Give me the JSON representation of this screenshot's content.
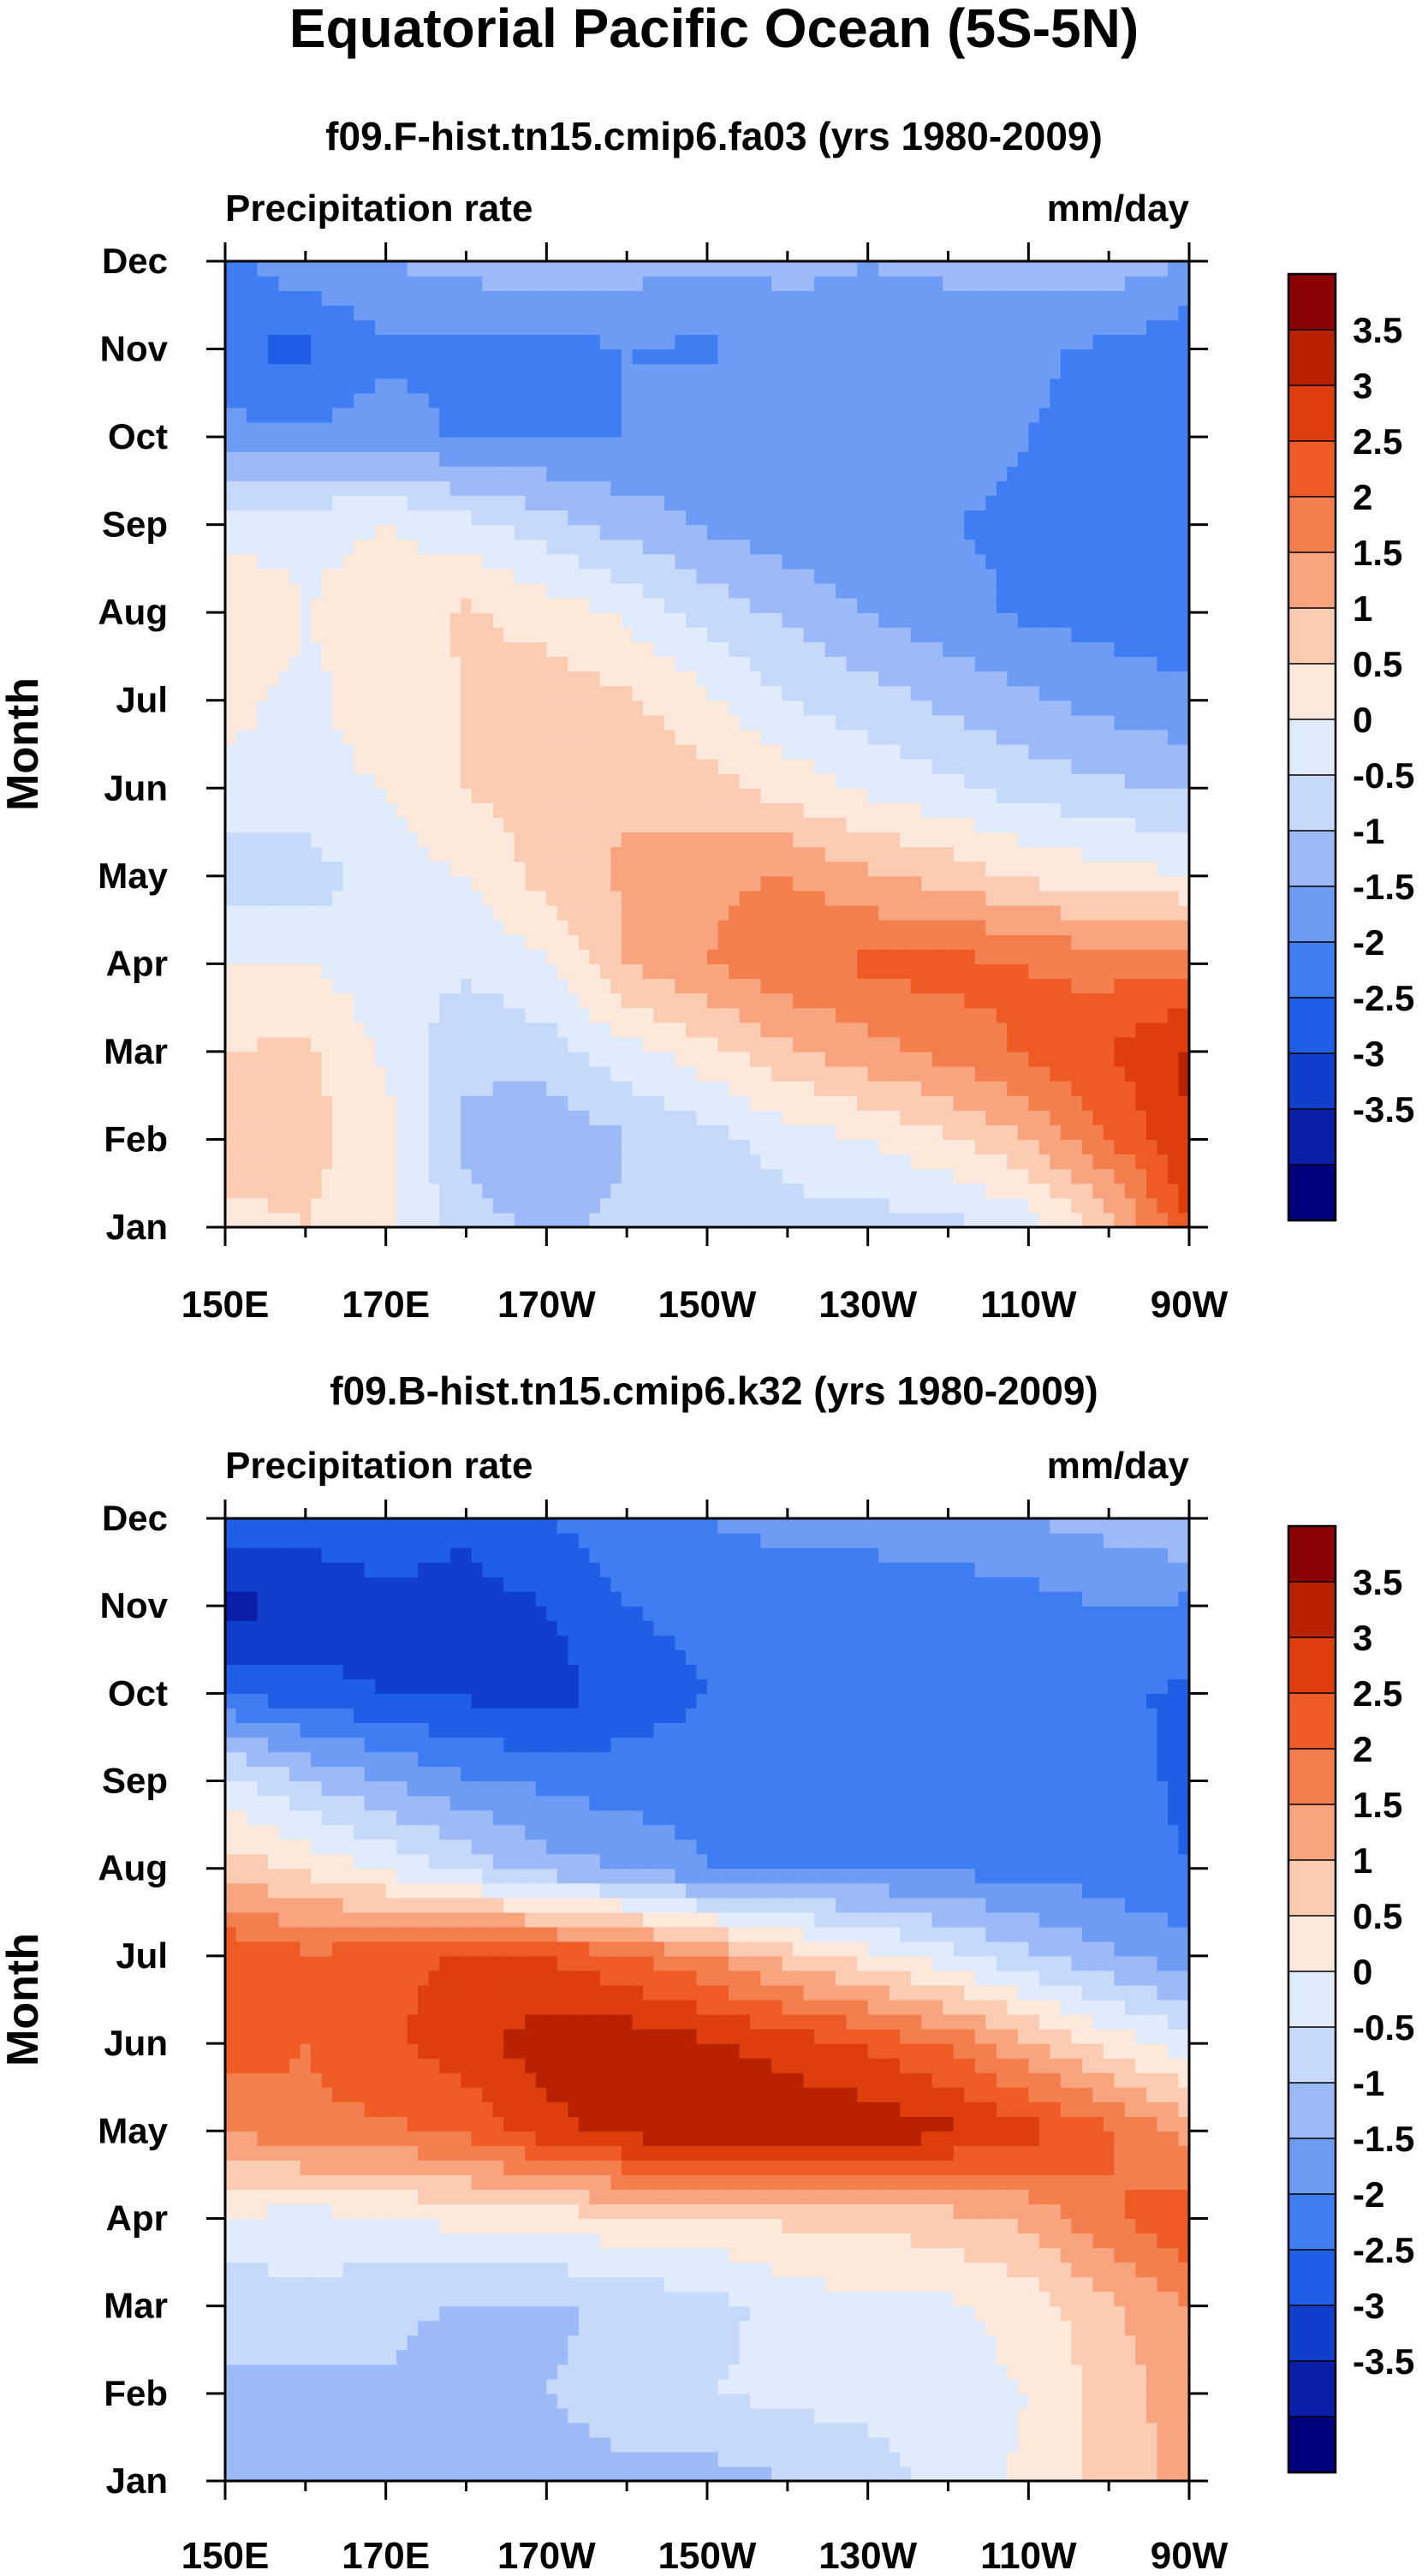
{
  "figure_title": "Equatorial Pacific Ocean (5S-5N)",
  "colors": {
    "palette": [
      "#00007d",
      "#0a1ea8",
      "#0f3fcc",
      "#1f5fe6",
      "#3f7ef2",
      "#6e9cf5",
      "#9bbaf7",
      "#c6d9fa",
      "#e0ecfb",
      "#fde9dc",
      "#fbcbb2",
      "#f8a47f",
      "#f47f4e",
      "#ef5b24",
      "#dd3e0c",
      "#b82200",
      "#8b0000"
    ]
  },
  "chart_data": [
    {
      "type": "heatmap",
      "subtitle": "f09.F-hist.tn15.cmip6.fa03 (yrs 1980-2009)",
      "variable": "Precipitation rate",
      "units": "mm/day",
      "ylabel": "Month",
      "x_ticks": [
        "150E",
        "170E",
        "170W",
        "150W",
        "130W",
        "110W",
        "90W"
      ],
      "y_ticks": [
        "Jan",
        "Feb",
        "Mar",
        "Apr",
        "May",
        "Jun",
        "Jul",
        "Aug",
        "Sep",
        "Oct",
        "Nov",
        "Dec"
      ],
      "colorbar_levels": [
        "3.5",
        "3",
        "2.5",
        "2",
        "1.5",
        "1",
        "0.5",
        "0",
        "-0.5",
        "-1",
        "-1.5",
        "-2",
        "-2.5",
        "-3",
        "-3.5"
      ],
      "x_lon": [
        150,
        160,
        170,
        180,
        190,
        200,
        210,
        220,
        230,
        240,
        250,
        260,
        270
      ],
      "y_month": [
        1,
        2,
        3,
        4,
        5,
        6,
        7,
        8,
        9,
        10,
        11,
        12
      ],
      "values": [
        [
          0.8,
          1.0,
          0.6,
          -0.3,
          -0.6,
          -0.4,
          -0.3,
          -0.2,
          -0.2,
          -0.2,
          0.2,
          1.2,
          3.0
        ],
        [
          1.3,
          1.2,
          0.7,
          -0.6,
          -1.0,
          -0.5,
          -0.2,
          0.2,
          0.5,
          0.9,
          1.5,
          2.5,
          3.5
        ],
        [
          1.0,
          1.1,
          0.4,
          -0.4,
          -0.2,
          0.3,
          0.8,
          1.4,
          1.8,
          2.2,
          2.6,
          3.0,
          3.6
        ],
        [
          0.5,
          0.5,
          0.2,
          0.1,
          0.4,
          1.5,
          2.0,
          2.4,
          2.6,
          2.7,
          2.5,
          2.3,
          2.4
        ],
        [
          -0.3,
          -0.3,
          0.3,
          0.5,
          1.2,
          1.6,
          1.9,
          2.0,
          1.6,
          1.3,
          0.9,
          0.7,
          0.5
        ],
        [
          0.4,
          0.4,
          0.5,
          1.0,
          1.3,
          1.4,
          1.2,
          0.8,
          0.4,
          0.1,
          -0.2,
          -0.4,
          -0.6
        ],
        [
          0.6,
          0.4,
          0.7,
          1.0,
          1.3,
          1.1,
          0.6,
          0.0,
          -0.3,
          -0.6,
          -0.9,
          -1.2,
          -1.4
        ],
        [
          0.9,
          0.5,
          0.7,
          1.1,
          0.8,
          0.4,
          -0.2,
          -0.6,
          -1.0,
          -1.3,
          -1.6,
          -1.7,
          -1.8
        ],
        [
          0.3,
          0.4,
          0.5,
          0.2,
          -0.3,
          -0.7,
          -1.1,
          -1.3,
          -1.5,
          -1.5,
          -1.6,
          -1.7,
          -1.9
        ],
        [
          -1.3,
          -1.4,
          -1.2,
          -1.6,
          -1.5,
          -1.5,
          -1.2,
          -1.3,
          -1.2,
          -1.3,
          -1.5,
          -1.7,
          -1.9
        ],
        [
          -2.0,
          -2.1,
          -1.6,
          -1.7,
          -1.7,
          -1.5,
          -1.6,
          -1.2,
          -1.2,
          -1.3,
          -1.4,
          -1.6,
          -1.9
        ],
        [
          -1.6,
          -1.2,
          -1.0,
          -0.8,
          -0.6,
          -0.8,
          -0.9,
          -0.9,
          -1.0,
          -0.9,
          -0.8,
          -0.7,
          -1.0
        ]
      ]
    },
    {
      "type": "heatmap",
      "subtitle": "f09.B-hist.tn15.cmip6.k32 (yrs 1980-2009)",
      "variable": "Precipitation rate",
      "units": "mm/day",
      "ylabel": "Month",
      "x_ticks": [
        "150E",
        "170E",
        "170W",
        "150W",
        "130W",
        "110W",
        "90W"
      ],
      "y_ticks": [
        "Jan",
        "Feb",
        "Mar",
        "Apr",
        "May",
        "Jun",
        "Jul",
        "Aug",
        "Sep",
        "Oct",
        "Nov",
        "Dec"
      ],
      "colorbar_levels": [
        "3.5",
        "3",
        "2.5",
        "2",
        "1.5",
        "1",
        "0.5",
        "0",
        "-0.5",
        "-1",
        "-1.5",
        "-2",
        "-2.5",
        "-3",
        "-3.5"
      ],
      "x_lon": [
        150,
        160,
        170,
        180,
        190,
        200,
        210,
        220,
        230,
        240,
        250,
        260,
        270
      ],
      "y_month": [
        1,
        2,
        3,
        4,
        5,
        6,
        7,
        8,
        9,
        10,
        11,
        12
      ],
      "values": [
        [
          -0.8,
          -0.7,
          -0.9,
          -0.6,
          -0.7,
          -0.6,
          -0.7,
          -0.5,
          -0.3,
          0.2,
          0.6,
          1.2,
          1.7
        ],
        [
          -0.6,
          -0.7,
          -0.6,
          -0.8,
          -0.5,
          -0.3,
          0.0,
          0.1,
          0.2,
          0.3,
          0.5,
          1.2,
          1.8
        ],
        [
          -0.3,
          -0.2,
          -0.3,
          -0.6,
          -0.6,
          -0.4,
          -0.2,
          0.2,
          0.4,
          0.4,
          0.7,
          1.4,
          2.0
        ],
        [
          0.4,
          0.3,
          0.4,
          0.7,
          0.7,
          0.9,
          0.9,
          1.1,
          1.1,
          1.3,
          1.6,
          2.4,
          3.0
        ],
        [
          2.0,
          2.4,
          2.4,
          2.6,
          3.3,
          3.7,
          3.9,
          3.9,
          3.9,
          3.6,
          3.2,
          2.6,
          1.8
        ],
        [
          2.8,
          2.5,
          2.9,
          3.3,
          3.8,
          3.8,
          3.6,
          3.3,
          2.9,
          2.4,
          1.6,
          0.8,
          0.2
        ],
        [
          3.0,
          2.6,
          2.8,
          3.1,
          3.0,
          2.6,
          2.0,
          1.3,
          0.7,
          0.2,
          -0.4,
          -0.9,
          -1.3
        ],
        [
          1.3,
          0.9,
          0.4,
          -0.2,
          -0.8,
          -1.0,
          -1.5,
          -1.6,
          -1.5,
          -1.6,
          -1.7,
          -1.8,
          -2.0
        ],
        [
          0.2,
          -0.5,
          -1.0,
          -1.4,
          -1.6,
          -1.8,
          -1.8,
          -1.9,
          -1.7,
          -1.7,
          -1.7,
          -1.8,
          -2.1
        ],
        [
          -2.0,
          -2.3,
          -2.5,
          -2.6,
          -2.8,
          -2.2,
          -2.0,
          -2.0,
          -1.7,
          -1.7,
          -1.8,
          -1.9,
          -2.1
        ],
        [
          -3.2,
          -2.9,
          -2.7,
          -2.7,
          -2.5,
          -2.0,
          -1.9,
          -1.9,
          -1.8,
          -1.8,
          -1.7,
          -1.5,
          -1.6
        ],
        [
          -2.2,
          -2.3,
          -2.1,
          -2.4,
          -2.0,
          -1.7,
          -1.5,
          -1.3,
          -1.3,
          -1.2,
          -1.0,
          -0.8,
          -0.5
        ]
      ]
    }
  ]
}
